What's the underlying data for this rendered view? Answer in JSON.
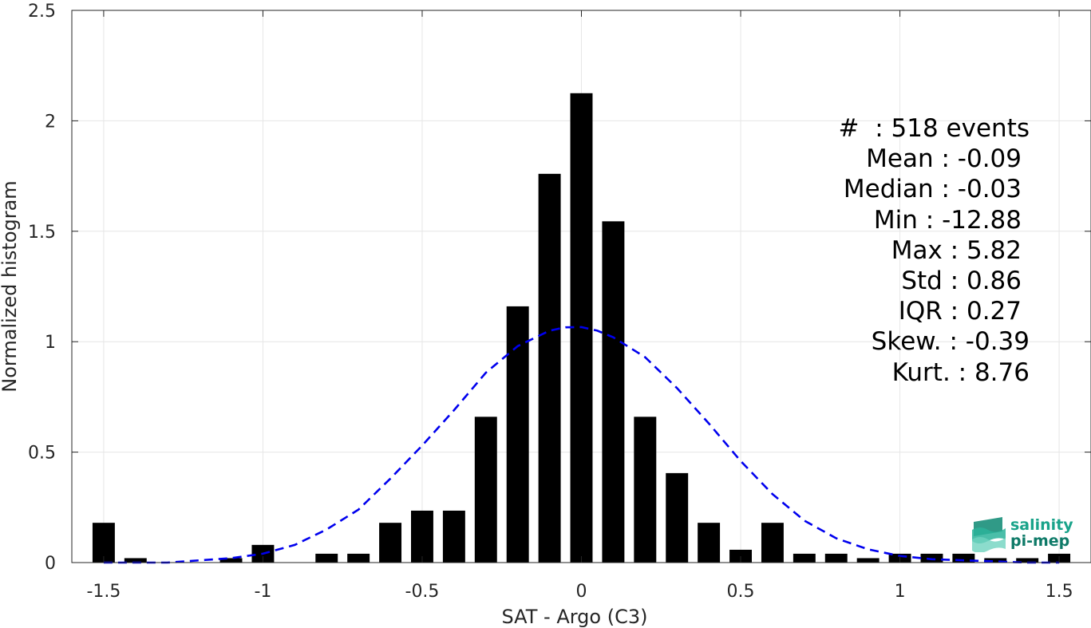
{
  "chart_data": {
    "type": "bar",
    "xlabel": "SAT - Argo (C3)",
    "ylabel": "Normalized histogram",
    "xlim": [
      -1.6,
      1.6
    ],
    "ylim": [
      0,
      2.5
    ],
    "grid": true,
    "xticks": [
      -1.5,
      -1,
      -0.5,
      0,
      0.5,
      1,
      1.5
    ],
    "xtick_labels": [
      "-1.5",
      "-1",
      "-0.5",
      "0",
      "0.5",
      "1",
      "1.5"
    ],
    "yticks": [
      0,
      0.5,
      1,
      1.5,
      2,
      2.5
    ],
    "ytick_labels": [
      "0",
      "0.5",
      "1",
      "1.5",
      "2",
      "2.5"
    ],
    "bar_width": 0.07,
    "bar_color": "#000000",
    "series": [
      {
        "type": "bar",
        "x": [
          -1.5,
          -1.4,
          -1.3,
          -1.2,
          -1.1,
          -1.0,
          -0.9,
          -0.8,
          -0.7,
          -0.6,
          -0.5,
          -0.4,
          -0.3,
          -0.2,
          -0.1,
          0.0,
          0.1,
          0.2,
          0.3,
          0.4,
          0.5,
          0.6,
          0.7,
          0.8,
          0.9,
          1.0,
          1.1,
          1.2,
          1.3,
          1.4,
          1.5
        ],
        "values": [
          0.18,
          0.02,
          0,
          0,
          0.02,
          0.08,
          0,
          0.04,
          0.04,
          0.18,
          0.235,
          0.235,
          0.66,
          1.16,
          1.76,
          2.125,
          1.545,
          0.66,
          0.405,
          0.18,
          0.058,
          0.18,
          0.04,
          0.04,
          0.02,
          0.04,
          0.04,
          0.04,
          0.02,
          0.02,
          0.04
        ]
      },
      {
        "type": "line",
        "style": "dashed",
        "color": "#0000ee",
        "x": [
          -1.5,
          -1.4,
          -1.3,
          -1.2,
          -1.1,
          -1.0,
          -0.9,
          -0.8,
          -0.7,
          -0.6,
          -0.5,
          -0.4,
          -0.3,
          -0.2,
          -0.1,
          -0.05,
          0.0,
          0.05,
          0.1,
          0.2,
          0.3,
          0.4,
          0.5,
          0.6,
          0.7,
          0.8,
          0.9,
          1.0,
          1.1,
          1.2,
          1.3,
          1.4,
          1.5
        ],
        "values": [
          0.0,
          0.0,
          0.0,
          0.01,
          0.02,
          0.04,
          0.08,
          0.15,
          0.24,
          0.38,
          0.53,
          0.69,
          0.86,
          0.98,
          1.05,
          1.065,
          1.066,
          1.05,
          1.02,
          0.93,
          0.79,
          0.63,
          0.46,
          0.31,
          0.19,
          0.11,
          0.06,
          0.03,
          0.015,
          0.01,
          0.005,
          0.0,
          0.0
        ]
      }
    ]
  },
  "stats": [
    "#  : 518 events",
    "Mean : -0.09",
    "Median : -0.03",
    "Min : -12.88",
    "Max : 5.82",
    "Std : 0.86",
    "IQR : 0.27",
    "Skew. : -0.39",
    "Kurt. : 8.76"
  ],
  "logo": {
    "line1": "salinity",
    "line2": "pi-mep",
    "color1": "#19a38a",
    "color2": "#0e7a68"
  },
  "colors": {
    "axis": "#262626",
    "grid": "#e6e6e6"
  }
}
